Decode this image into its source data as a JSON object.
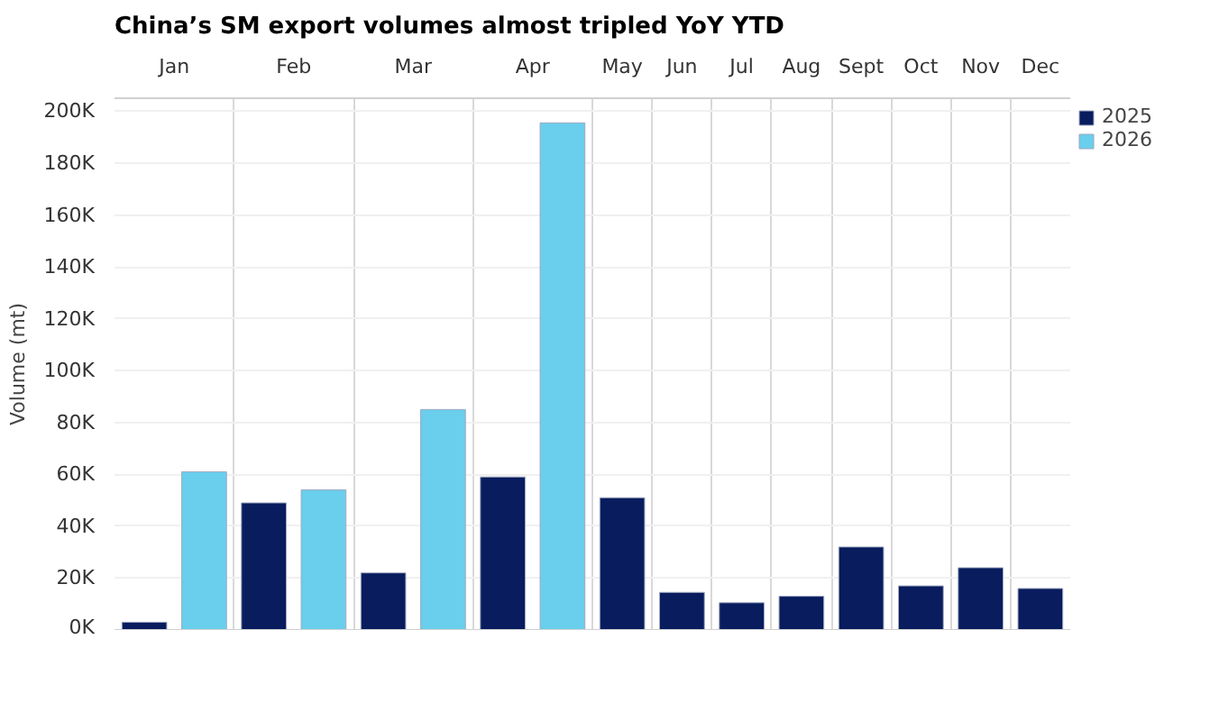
{
  "chart_data": {
    "type": "bar",
    "title": "China’s SM export volumes almost tripled YoY YTD",
    "ylabel": "Volume (mt)",
    "categories": [
      "Jan",
      "Feb",
      "Mar",
      "Apr",
      "May",
      "Jun",
      "Jul",
      "Aug",
      "Sept",
      "Oct",
      "Nov",
      "Dec"
    ],
    "series": [
      {
        "name": "2025",
        "color": "#081c5e",
        "values": [
          3000,
          49000,
          22000,
          59000,
          51000,
          14500,
          10500,
          13000,
          32000,
          17000,
          24000,
          16000
        ]
      },
      {
        "name": "2026",
        "color": "#69cfec",
        "values": [
          61000,
          54000,
          85000,
          195500,
          null,
          null,
          null,
          null,
          null,
          null,
          null,
          null
        ]
      }
    ],
    "ylim": [
      0,
      205000
    ],
    "yticks": [
      {
        "value": 0,
        "label": "0K"
      },
      {
        "value": 20000,
        "label": "20K"
      },
      {
        "value": 40000,
        "label": "40K"
      },
      {
        "value": 60000,
        "label": "60K"
      },
      {
        "value": 80000,
        "label": "80K"
      },
      {
        "value": 100000,
        "label": "100K"
      },
      {
        "value": 120000,
        "label": "120K"
      },
      {
        "value": 140000,
        "label": "140K"
      },
      {
        "value": 160000,
        "label": "160K"
      },
      {
        "value": 180000,
        "label": "180K"
      },
      {
        "value": 200000,
        "label": "200K"
      }
    ],
    "grid": true,
    "legend": "top right"
  }
}
